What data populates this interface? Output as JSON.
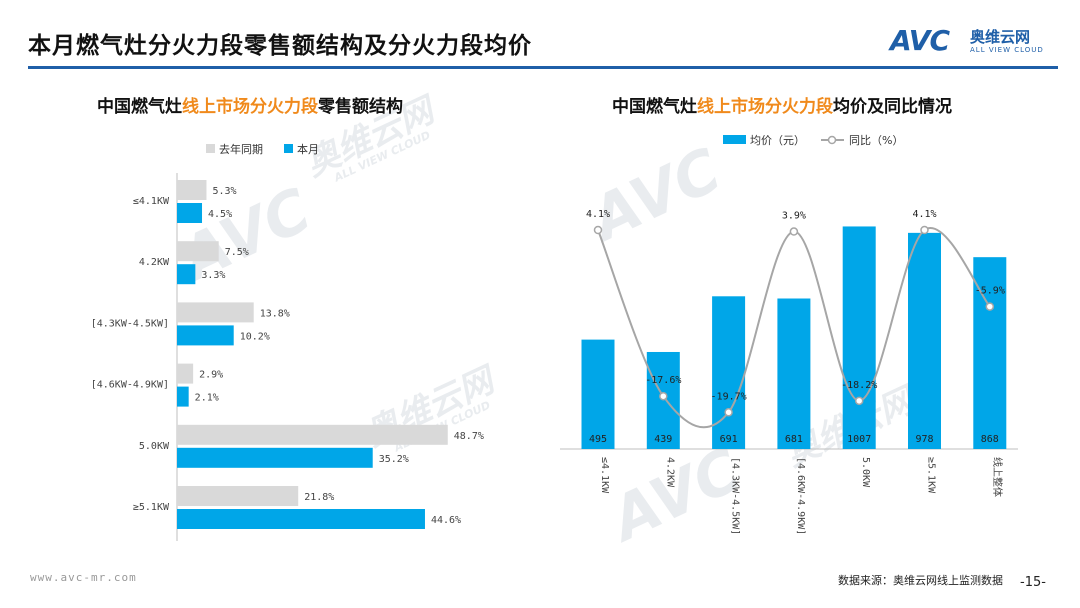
{
  "header": {
    "title": "本月燃气灶分火力段零售额结构及分火力段均价",
    "logo_mark": "AVC",
    "logo_cn": "奥维云网",
    "logo_en": "ALL VIEW CLOUD"
  },
  "watermark": {
    "cn": "奥维云网",
    "en": "ALL VIEW CLOUD",
    "mark": "AVC"
  },
  "left_panel": {
    "title_pre": "中国燃气灶",
    "title_hl": "线上市场分火力段",
    "title_post": "零售额结构"
  },
  "right_panel": {
    "title_pre": "中国燃气灶",
    "title_hl": "线上市场分火力段",
    "title_post": "均价及同比情况"
  },
  "footer": {
    "url": "www.avc-mr.com",
    "source": "数据来源：奥维云网线上监测数据",
    "page": "-15-"
  },
  "colors": {
    "current": "#00a6e8",
    "last_year": "#d9d9d9",
    "line": "#a6a6a6",
    "accent": "#f08a1c",
    "brand": "#1f5fa8"
  },
  "chart_data": [
    {
      "type": "bar",
      "orientation": "horizontal",
      "title": "中国燃气灶线上市场分火力段零售额结构",
      "categories": [
        "≤4.1KW",
        "4.2KW",
        "[4.3KW-4.5KW]",
        "[4.6KW-4.9KW]",
        "5.0KW",
        "≥5.1KW"
      ],
      "series": [
        {
          "name": "去年同期",
          "values": [
            5.3,
            7.5,
            13.8,
            2.9,
            48.7,
            21.8
          ],
          "labels": [
            "5.3%",
            "7.5%",
            "13.8%",
            "2.9%",
            "48.7%",
            "21.8%"
          ]
        },
        {
          "name": "本月",
          "values": [
            4.5,
            3.3,
            10.2,
            2.1,
            35.2,
            44.6
          ],
          "labels": [
            "4.5%",
            "3.3%",
            "10.2%",
            "2.1%",
            "35.2%",
            "44.6%"
          ]
        }
      ],
      "unit": "%",
      "legend": "top-left",
      "xlim": [
        0,
        50
      ]
    },
    {
      "type": "bar+line",
      "title": "中国燃气灶线上市场分火力段均价及同比情况",
      "categories": [
        "≤4.1KW",
        "4.2KW",
        "[4.3KW-4.5KW]",
        "[4.6KW-4.9KW]",
        "5.0KW",
        "≥5.1KW",
        "线上整体"
      ],
      "series": [
        {
          "name": "均价（元）",
          "type": "bar",
          "values": [
            495,
            439,
            691,
            681,
            1007,
            978,
            868
          ],
          "labels": [
            "495",
            "439",
            "691",
            "681",
            "1007",
            "978",
            "868"
          ]
        },
        {
          "name": "同比（%）",
          "type": "line",
          "smooth": true,
          "values": [
            4.1,
            -17.6,
            -19.7,
            3.9,
            -18.2,
            4.1,
            -5.9
          ],
          "labels": [
            "4.1%",
            "-17.6%",
            "-19.7%",
            "3.9%",
            "-18.2%",
            "4.1%",
            "-5.9%"
          ]
        }
      ],
      "bar_ylim": [
        0,
        1100
      ],
      "line_ylim": [
        -23,
        6
      ],
      "legend": "top-center"
    }
  ]
}
